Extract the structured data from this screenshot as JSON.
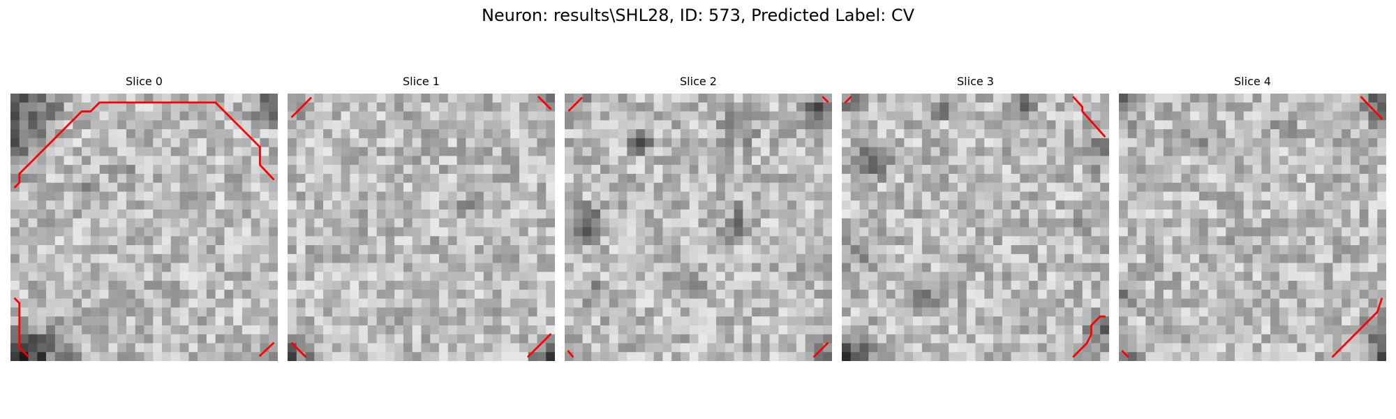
{
  "figure": {
    "title": "Neuron: results\\SHL28, ID: 573, Predicted Label: CV",
    "contour_color": "#ff0000"
  },
  "panels": [
    {
      "title": "Slice 0"
    },
    {
      "title": "Slice 1"
    },
    {
      "title": "Slice 2"
    },
    {
      "title": "Slice 3"
    },
    {
      "title": "Slice 4"
    }
  ]
}
